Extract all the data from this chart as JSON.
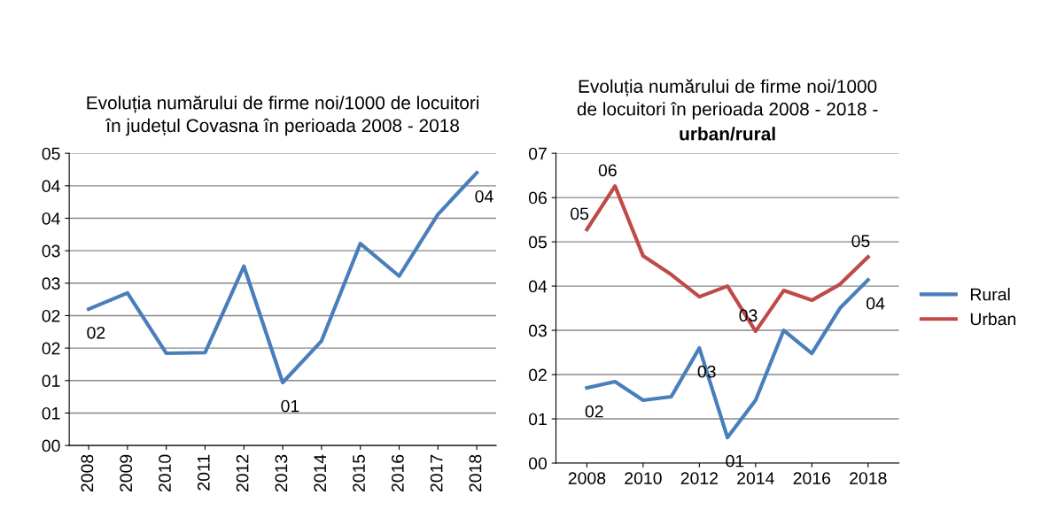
{
  "chart_data": [
    {
      "type": "line",
      "title": "Evoluția numărului de firme noi/1000 de locuitori în județul Covasna în perioada 2008 - 2018",
      "categories": [
        "2008",
        "2009",
        "2010",
        "2011",
        "2012",
        "2013",
        "2014",
        "2015",
        "2016",
        "2017",
        "2018"
      ],
      "series": [
        {
          "color": "#4a7ebb",
          "values": [
            2.1,
            2.35,
            1.42,
            1.43,
            2.76,
            0.97,
            1.61,
            3.11,
            2.61,
            3.56,
            4.2
          ],
          "value_labels": [
            "02",
            null,
            null,
            null,
            null,
            "01",
            null,
            null,
            null,
            null,
            "04"
          ]
        }
      ],
      "ylim": [
        0,
        4.5
      ],
      "yticks": [
        {
          "value": 0,
          "label": "00"
        },
        {
          "value": 0.5,
          "label": "01"
        },
        {
          "value": 1,
          "label": "01"
        },
        {
          "value": 1.5,
          "label": "02"
        },
        {
          "value": 2,
          "label": "02"
        },
        {
          "value": 2.5,
          "label": "03"
        },
        {
          "value": 3,
          "label": "03"
        },
        {
          "value": 3.5,
          "label": "04"
        },
        {
          "value": 4,
          "label": "04"
        },
        {
          "value": 4.5,
          "label": "05"
        }
      ],
      "grid": "y",
      "legend": false,
      "marker": "none",
      "line_style": "solid"
    },
    {
      "type": "line",
      "title": "Evoluția numărului de firme noi/1000 de locuitori în perioada 2008 - 2018 -",
      "subtitle": "urban/rural",
      "x": [
        2008,
        2009,
        2010,
        2011,
        2012,
        2013,
        2014,
        2015,
        2016,
        2017,
        2018
      ],
      "series": [
        {
          "name": "Rural",
          "color": "#4a7ebb",
          "values": [
            1.7,
            1.84,
            1.42,
            1.5,
            2.6,
            0.58,
            1.42,
            3.0,
            2.48,
            3.5,
            4.14
          ],
          "value_labels": [
            "02",
            null,
            null,
            null,
            "03",
            "01",
            null,
            null,
            null,
            null,
            "04"
          ]
        },
        {
          "name": "Urban",
          "color": "#be4b48",
          "values": [
            5.28,
            6.26,
            4.68,
            4.26,
            3.76,
            4.0,
            2.98,
            3.9,
            3.68,
            4.04,
            4.66
          ],
          "value_labels": [
            "05",
            "06",
            null,
            null,
            null,
            null,
            "03",
            null,
            null,
            null,
            "05"
          ]
        }
      ],
      "xlim": [
        2006.9,
        2019.1
      ],
      "xticks": [
        2008,
        2010,
        2012,
        2014,
        2016,
        2018
      ],
      "ylim": [
        0,
        7
      ],
      "yticks": [
        {
          "value": 0,
          "label": "00"
        },
        {
          "value": 1,
          "label": "01"
        },
        {
          "value": 2,
          "label": "02"
        },
        {
          "value": 3,
          "label": "03"
        },
        {
          "value": 4,
          "label": "04"
        },
        {
          "value": 5,
          "label": "05"
        },
        {
          "value": 6,
          "label": "06"
        },
        {
          "value": 7,
          "label": "07"
        }
      ],
      "grid": "y",
      "legend": "right",
      "marker": "none",
      "line_style": "solid"
    }
  ]
}
